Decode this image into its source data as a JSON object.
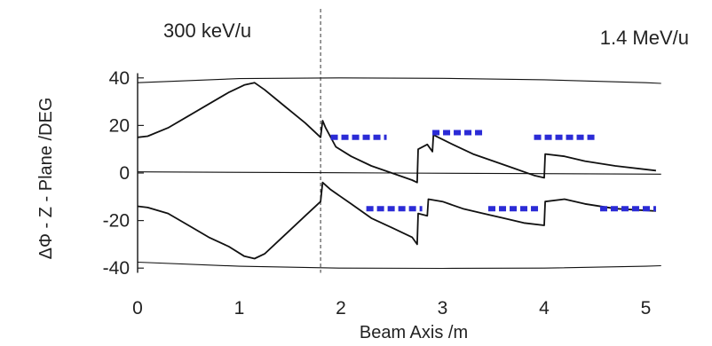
{
  "chart_data": {
    "type": "line",
    "annotations": {
      "left": "300 keV/u",
      "right": "1.4 MeV/u"
    },
    "xlabel": "Beam Axis /m",
    "ylabel": "ΔΦ - Z - Plane /DEG",
    "xlim": [
      0,
      5.3
    ],
    "ylim": [
      -42,
      42
    ],
    "xticks": [
      0,
      1,
      2,
      3,
      4,
      5
    ],
    "yticks": [
      40,
      20,
      0,
      -20,
      -40
    ],
    "transition_x": 1.8,
    "grid": false,
    "series": [
      {
        "role": "upper-trace",
        "x": [
          0,
          0.1,
          0.3,
          0.5,
          0.7,
          0.9,
          1.05,
          1.15,
          1.25,
          1.45,
          1.65,
          1.8,
          1.82,
          1.85,
          1.95,
          2.1,
          2.3,
          2.5,
          2.7,
          2.75,
          2.76,
          2.85,
          2.9,
          2.91,
          3.1,
          3.3,
          3.5,
          3.7,
          3.9,
          4.0,
          4.01,
          4.2,
          4.4,
          4.7,
          5.1
        ],
        "y": [
          15,
          15.5,
          19,
          24,
          29,
          34,
          37,
          38,
          35,
          28,
          21,
          15,
          22,
          19,
          11,
          7,
          3,
          0,
          -3,
          -4,
          10,
          12,
          9,
          16,
          12,
          8,
          5,
          2,
          -1,
          -2,
          8,
          7,
          5,
          3,
          1
        ]
      },
      {
        "role": "lower-trace",
        "x": [
          0,
          0.1,
          0.3,
          0.5,
          0.7,
          0.9,
          1.05,
          1.15,
          1.25,
          1.45,
          1.65,
          1.8,
          1.82,
          1.9,
          2.1,
          2.3,
          2.5,
          2.7,
          2.75,
          2.76,
          2.85,
          2.86,
          3.0,
          3.2,
          3.4,
          3.6,
          3.8,
          4.0,
          4.01,
          4.2,
          4.4,
          4.7,
          5.1
        ],
        "y": [
          -14,
          -14.5,
          -17,
          -22,
          -27,
          -31,
          -35,
          -36,
          -34,
          -26,
          -18,
          -12,
          -4,
          -7,
          -13,
          -19,
          -23,
          -27,
          -30,
          -17,
          -18,
          -11,
          -12,
          -15,
          -17,
          -19,
          -21,
          -22,
          -12,
          -11,
          -13,
          -15,
          -16
        ]
      },
      {
        "role": "upper-envelope",
        "x": [
          0,
          1,
          2,
          3,
          4,
          5,
          5.15
        ],
        "y": [
          38,
          39.7,
          40,
          39.8,
          39.2,
          38,
          37.7
        ]
      },
      {
        "role": "lower-envelope",
        "x": [
          0,
          1,
          2,
          3,
          4,
          5,
          5.15
        ],
        "y": [
          -37.5,
          -39.2,
          -40,
          -40.1,
          -40,
          -39.2,
          -39
        ]
      },
      {
        "role": "zero-line",
        "x": [
          0,
          2.5,
          5.15
        ],
        "y": [
          0.5,
          0,
          -0.5
        ]
      }
    ],
    "dashed_bands": [
      {
        "x": [
          1.9,
          2.45
        ],
        "y": 15
      },
      {
        "x": [
          2.9,
          3.4
        ],
        "y": 17
      },
      {
        "x": [
          3.9,
          4.5
        ],
        "y": 15
      },
      {
        "x": [
          2.25,
          2.8
        ],
        "y": -15
      },
      {
        "x": [
          3.45,
          3.95
        ],
        "y": -15
      },
      {
        "x": [
          4.55,
          5.1
        ],
        "y": -15
      }
    ],
    "colors": {
      "line": "#111111",
      "band": "#2b2bd6"
    }
  }
}
